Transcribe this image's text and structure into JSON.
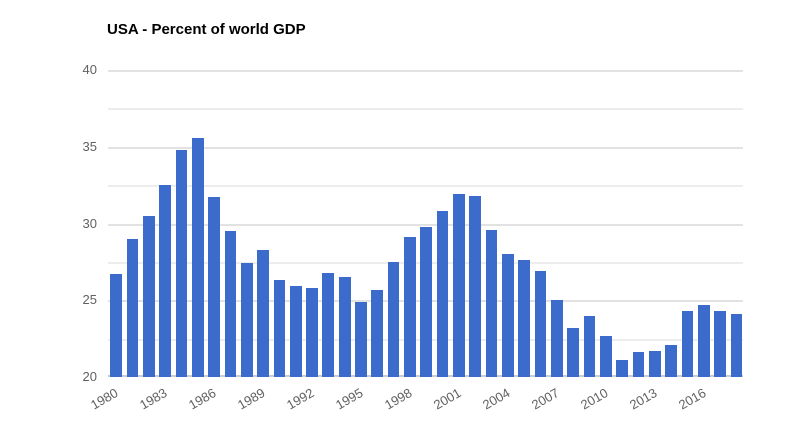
{
  "title": "USA - Percent of world GDP",
  "chart_data": {
    "type": "bar",
    "title": "USA - Percent of world GDP",
    "xlabel": "",
    "ylabel": "",
    "ylim": [
      20,
      40
    ],
    "y_major_ticks": [
      20,
      25,
      30,
      35,
      40
    ],
    "y_grid_step": 2.5,
    "grid": true,
    "legend": false,
    "bar_color": "#3b6bcb",
    "x_tick_labels": [
      "1980",
      "1983",
      "1986",
      "1989",
      "1992",
      "1995",
      "1998",
      "2001",
      "2004",
      "2007",
      "2010",
      "2013",
      "2016"
    ],
    "x": [
      1980,
      1981,
      1982,
      1983,
      1984,
      1985,
      1986,
      1987,
      1988,
      1989,
      1990,
      1991,
      1992,
      1993,
      1994,
      1995,
      1996,
      1997,
      1998,
      1999,
      2000,
      2001,
      2002,
      2003,
      2004,
      2005,
      2006,
      2007,
      2008,
      2009,
      2010,
      2011,
      2012,
      2013,
      2014,
      2015,
      2016,
      2017,
      2018
    ],
    "values": [
      26.7,
      29.0,
      30.5,
      32.5,
      34.8,
      35.6,
      31.7,
      29.5,
      27.4,
      28.3,
      26.3,
      25.9,
      25.8,
      26.8,
      26.5,
      24.9,
      25.7,
      27.5,
      29.1,
      29.8,
      30.8,
      31.9,
      31.8,
      29.6,
      28.0,
      27.6,
      26.9,
      25.0,
      23.2,
      24.0,
      22.7,
      21.1,
      21.6,
      21.7,
      22.1,
      24.3,
      24.7,
      24.3,
      24.1
    ]
  }
}
